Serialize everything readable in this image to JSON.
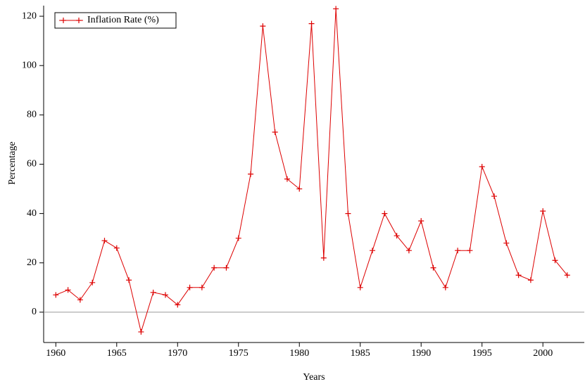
{
  "chart_data": {
    "type": "line",
    "xlabel": "Years",
    "ylabel": "Percentage",
    "x": [
      1960,
      1961,
      1962,
      1963,
      1964,
      1965,
      1966,
      1967,
      1968,
      1969,
      1970,
      1971,
      1972,
      1973,
      1974,
      1975,
      1976,
      1977,
      1978,
      1979,
      1980,
      1981,
      1982,
      1983,
      1984,
      1985,
      1986,
      1987,
      1988,
      1989,
      1990,
      1991,
      1992,
      1993,
      1994,
      1995,
      1996,
      1997,
      1998,
      1999,
      2000,
      2001,
      2002
    ],
    "series": [
      {
        "name": "Inflation Rate (%)",
        "color": "#dd0000",
        "values": [
          7,
          9,
          5,
          12,
          29,
          26,
          13,
          -8,
          8,
          7,
          3,
          10,
          10,
          18,
          18,
          30,
          56,
          116,
          73,
          54,
          50,
          117,
          22,
          123,
          40,
          10,
          25,
          40,
          31,
          25,
          37,
          18,
          10,
          25,
          25,
          59,
          47,
          28,
          15,
          13,
          41,
          21,
          15
        ]
      }
    ],
    "xlim": [
      1959,
      2003.4
    ],
    "xticks": [
      1960,
      1965,
      1970,
      1975,
      1980,
      1985,
      1990,
      1995,
      2000
    ],
    "ylim": [
      -12.3,
      124.3
    ],
    "yticks": [
      0,
      20,
      40,
      60,
      80,
      100,
      120
    ],
    "zero_line": true,
    "legend": "top-left"
  }
}
